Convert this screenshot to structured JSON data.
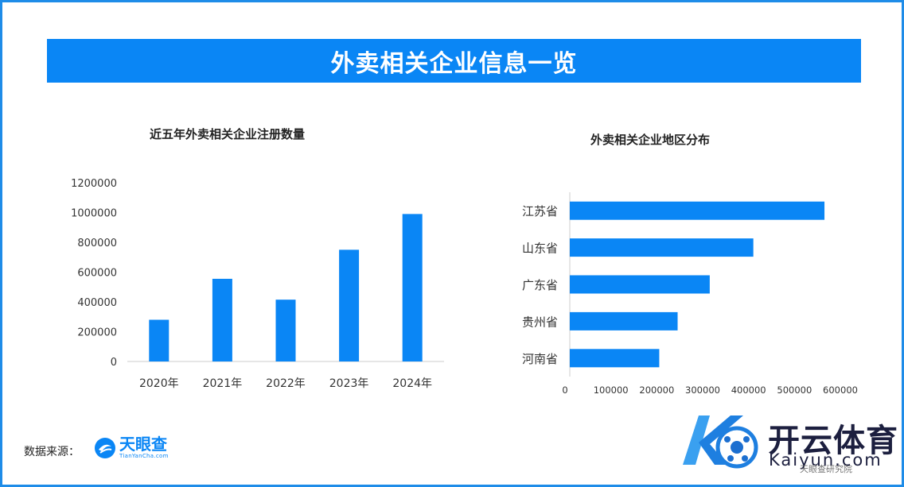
{
  "banner": {
    "title": "外卖相关企业信息一览"
  },
  "colors": {
    "accent": "#0a86f5",
    "border": "#1e8ce8"
  },
  "chart_data": [
    {
      "type": "bar",
      "title": "近五年外卖相关企业注册数量",
      "categories": [
        "2020年",
        "2021年",
        "2022年",
        "2023年",
        "2024年"
      ],
      "values": [
        280000,
        555000,
        415000,
        750000,
        990000
      ],
      "ylim": [
        0,
        1200000
      ],
      "yticks": [
        "0",
        "200000",
        "400000",
        "600000",
        "800000",
        "1000000",
        "1200000"
      ],
      "grid": false,
      "legend": "none"
    },
    {
      "type": "bar",
      "orientation": "horizontal",
      "title": "外卖相关企业地区分布",
      "categories": [
        "江苏省",
        "山东省",
        "广东省",
        "贵州省",
        "河南省"
      ],
      "values": [
        555000,
        400000,
        305000,
        235000,
        195000
      ],
      "xlim": [
        0,
        600000
      ],
      "xticks": [
        "0",
        "100000",
        "200000",
        "300000",
        "400000",
        "500000",
        "600000"
      ],
      "grid": false,
      "legend": "none"
    }
  ],
  "footer": {
    "source_label": "数据来源：",
    "source_logo_cn": "天眼查",
    "source_logo_en": "TianYanCha.com"
  },
  "watermark": {
    "brand_cn": "开云体育",
    "brand_en": "Kaiyun.com",
    "small": "天眼查研究院"
  }
}
